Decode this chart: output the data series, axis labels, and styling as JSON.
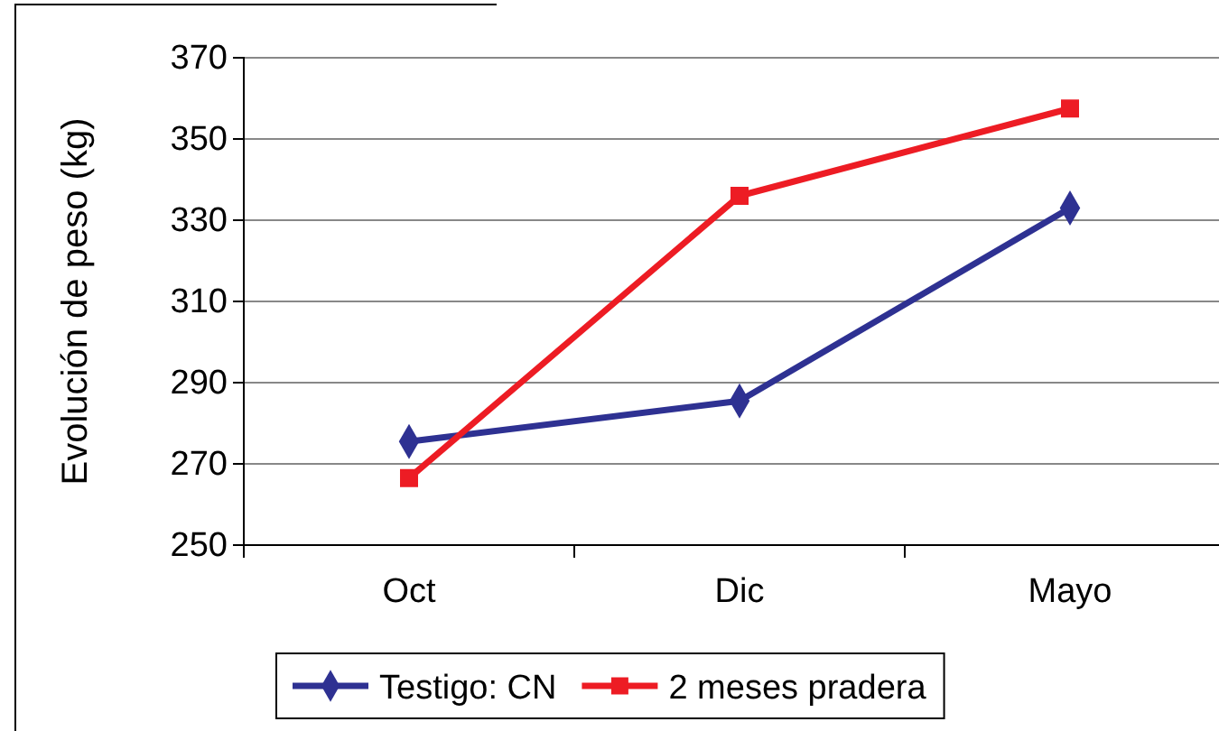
{
  "chart_data": {
    "type": "line",
    "ylabel": "Evolución de peso (kg)",
    "categories": [
      "Oct",
      "Dic",
      "Mayo"
    ],
    "series": [
      {
        "name": "Testigo: CN",
        "color": "#2e3192",
        "marker": "diamond",
        "values": [
          275.5,
          285.5,
          333
        ]
      },
      {
        "name": "2 meses pradera",
        "color": "#ed1c24",
        "marker": "square",
        "values": [
          266.5,
          336,
          357.5
        ]
      }
    ],
    "ylim": [
      250,
      370
    ],
    "yticks": [
      250,
      270,
      290,
      310,
      330,
      350,
      370
    ],
    "grid": "y",
    "legend": "bottom",
    "line_style": "solid"
  }
}
